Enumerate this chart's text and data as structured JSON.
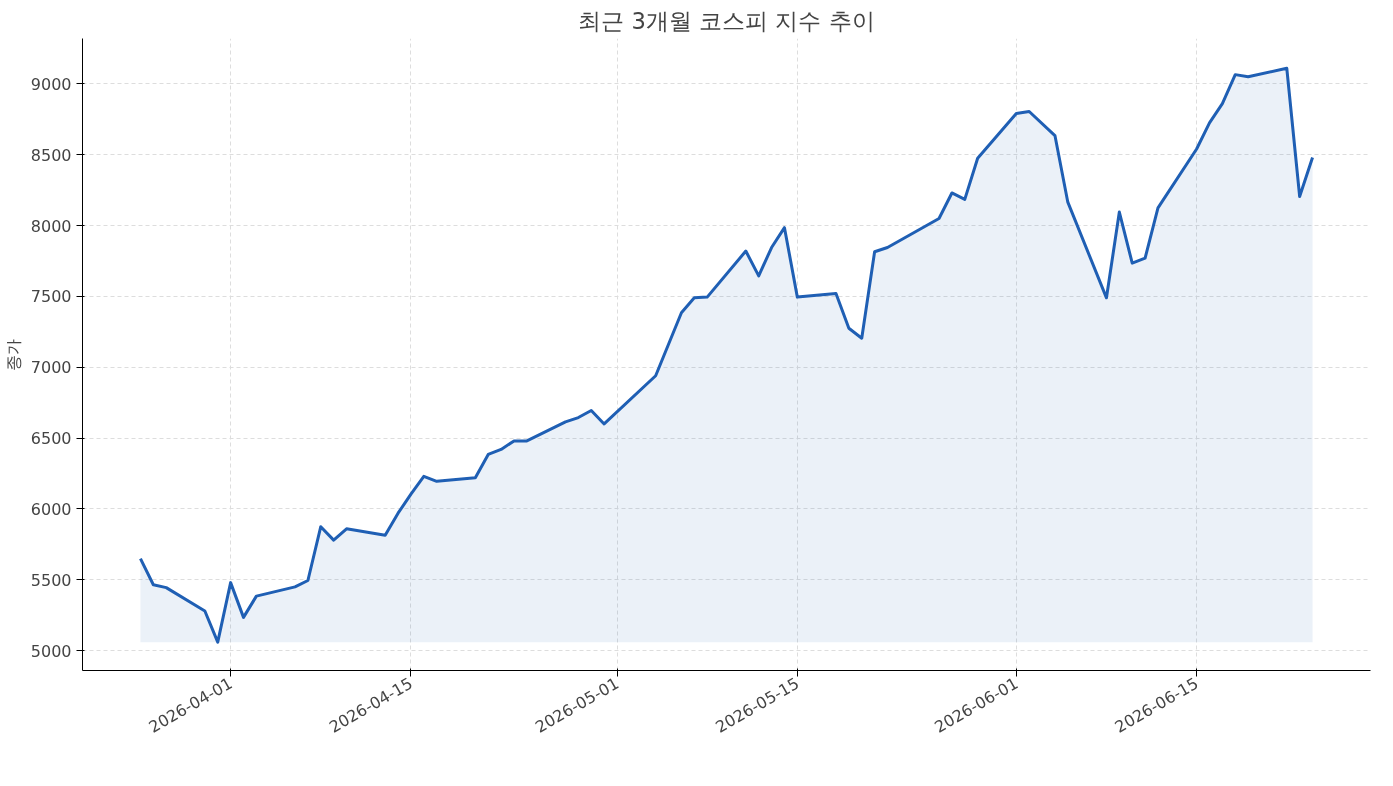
{
  "chart_data": {
    "type": "area",
    "title": "최근 3개월 코스피 지수 추이",
    "ylabel": "종가",
    "x": [
      "2026-03-25",
      "2026-03-26",
      "2026-03-27",
      "2026-03-30",
      "2026-03-31",
      "2026-04-01",
      "2026-04-02",
      "2026-04-03",
      "2026-04-06",
      "2026-04-07",
      "2026-04-08",
      "2026-04-09",
      "2026-04-10",
      "2026-04-13",
      "2026-04-14",
      "2026-04-15",
      "2026-04-16",
      "2026-04-17",
      "2026-04-20",
      "2026-04-21",
      "2026-04-22",
      "2026-04-23",
      "2026-04-24",
      "2026-04-27",
      "2026-04-28",
      "2026-04-29",
      "2026-04-30",
      "2026-05-04",
      "2026-05-06",
      "2026-05-07",
      "2026-05-08",
      "2026-05-11",
      "2026-05-12",
      "2026-05-13",
      "2026-05-14",
      "2026-05-15",
      "2026-05-18",
      "2026-05-19",
      "2026-05-20",
      "2026-05-21",
      "2026-05-22",
      "2026-05-26",
      "2026-05-27",
      "2026-05-28",
      "2026-05-29",
      "2026-06-01",
      "2026-06-02",
      "2026-06-04",
      "2026-06-05",
      "2026-06-08",
      "2026-06-09",
      "2026-06-10",
      "2026-06-11",
      "2026-06-12",
      "2026-06-15",
      "2026-06-16",
      "2026-06-17",
      "2026-06-18",
      "2026-06-19",
      "2026-06-22",
      "2026-06-23",
      "2026-06-24"
    ],
    "series": [
      {
        "color": "#1f5fb4",
        "values": [
          5650,
          5465,
          5445,
          5280,
          5060,
          5480,
          5235,
          5385,
          5450,
          5495,
          5875,
          5780,
          5860,
          5815,
          5970,
          6105,
          6230,
          6195,
          6220,
          6385,
          6420,
          6480,
          6480,
          6615,
          6645,
          6695,
          6600,
          6940,
          7385,
          7490,
          7495,
          7820,
          7645,
          7845,
          7985,
          7495,
          7520,
          7275,
          7205,
          7815,
          7845,
          8050,
          8230,
          8185,
          8475,
          8790,
          8805,
          8635,
          8165,
          7490,
          8095,
          7735,
          7770,
          8125,
          8540,
          8725,
          8860,
          9065,
          9050,
          9110,
          8205,
          8480
        ]
      }
    ],
    "xlim": [
      "2026-03-20T12:00",
      "2026-06-28T12:00"
    ],
    "xticks": [
      "2026-04-01",
      "2026-04-15",
      "2026-05-01",
      "2026-05-15",
      "2026-06-01",
      "2026-06-15"
    ],
    "ylim": [
      4860,
      9320
    ],
    "yticks": [
      5000,
      5500,
      6000,
      6500,
      7000,
      7500,
      8000,
      8500,
      9000
    ],
    "grid": true,
    "line_style": "solid",
    "marker": "none"
  }
}
